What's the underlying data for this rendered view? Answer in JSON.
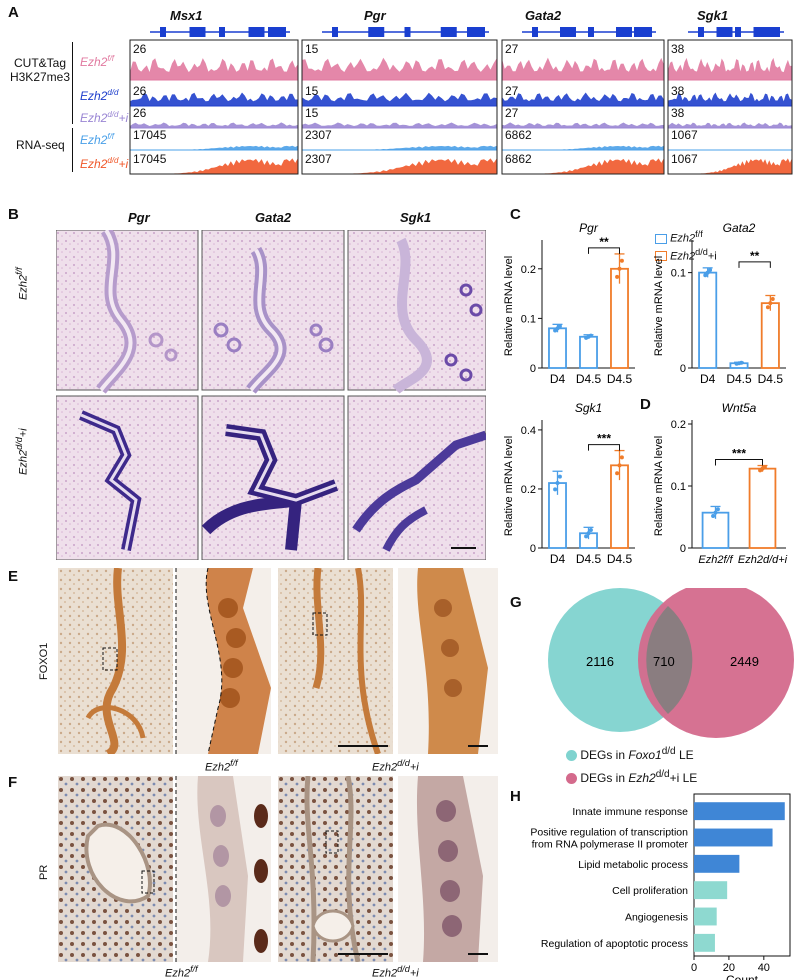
{
  "panels": {
    "A": "A",
    "B": "B",
    "C": "C",
    "D": "D",
    "E": "E",
    "F": "F",
    "G": "G",
    "H": "H"
  },
  "panelA": {
    "genes": [
      "Msx1",
      "Pgr",
      "Gata2",
      "Sgk1"
    ],
    "group_cut": "CUT&Tag",
    "group_cut2": "H3K27me3",
    "group_rna": "RNA-seq",
    "tracks": [
      {
        "label": "Ezh2",
        "sup": "f/f",
        "color": "#e17aa0",
        "scales": [
          "26",
          "15",
          "27",
          "38"
        ]
      },
      {
        "label": "Ezh2",
        "sup": "d/d",
        "color": "#1f3fcc",
        "scales": [
          "26",
          "15",
          "27",
          "38"
        ]
      },
      {
        "label": "Ezh2",
        "sup": "d/d",
        "suffix": "+i",
        "color": "#9a86d4",
        "scales": [
          "26",
          "15",
          "27",
          "38"
        ]
      },
      {
        "label": "Ezh2",
        "sup": "f/f",
        "color": "#4aa0e8",
        "scales": [
          "17045",
          "2307",
          "6862",
          "1067"
        ]
      },
      {
        "label": "Ezh2",
        "sup": "d/d",
        "suffix": "+i",
        "color": "#f0582a",
        "scales": [
          "17045",
          "2307",
          "6862",
          "1067"
        ]
      }
    ]
  },
  "panelB": {
    "cols": [
      "Pgr",
      "Gata2",
      "Sgk1"
    ],
    "rows": [
      {
        "label": "Ezh2",
        "sup": "f/f"
      },
      {
        "label": "Ezh2",
        "sup": "d/d",
        "suffix": "+i"
      }
    ]
  },
  "panelC": {
    "ylabel": "Relative mRNA level",
    "legend": [
      {
        "label": "Ezh2",
        "sup": "f/f",
        "color": "#4a9ee8"
      },
      {
        "label": "Ezh2",
        "sup": "d/d",
        "suffix": "+i",
        "color": "#f07c2a"
      }
    ]
  },
  "chart_data": [
    {
      "type": "bar",
      "title": "Pgr",
      "categories": [
        "D4",
        "D4.5",
        "D4.5"
      ],
      "values": [
        0.08,
        0.063,
        0.2
      ],
      "errors": [
        0.008,
        0.004,
        0.03
      ],
      "colors": [
        "#4a9ee8",
        "#4a9ee8",
        "#f07c2a"
      ],
      "ylim": [
        0,
        0.25
      ],
      "yticks": [
        "0",
        "0.1",
        "0.2"
      ],
      "ytick_values": [
        0,
        0.1,
        0.2
      ],
      "ylabel": "Relative mRNA level",
      "significance": [
        {
          "from": 1,
          "to": 2,
          "label": "**"
        }
      ]
    },
    {
      "type": "bar",
      "title": "Gata2",
      "categories": [
        "D4",
        "D4.5",
        "D4.5"
      ],
      "values": [
        0.1,
        0.005,
        0.068
      ],
      "errors": [
        0.005,
        0.001,
        0.008
      ],
      "colors": [
        "#4a9ee8",
        "#4a9ee8",
        "#f07c2a"
      ],
      "ylim": [
        0,
        0.13
      ],
      "yticks": [
        "0",
        "0.1"
      ],
      "ytick_values": [
        0,
        0.1
      ],
      "ylabel": "Relative mRNA level",
      "significance": [
        {
          "from": 1,
          "to": 2,
          "label": "**"
        }
      ]
    },
    {
      "type": "bar",
      "title": "Sgk1",
      "categories": [
        "D4",
        "D4.5",
        "D4.5"
      ],
      "values": [
        0.22,
        0.05,
        0.28
      ],
      "errors": [
        0.04,
        0.02,
        0.05
      ],
      "colors": [
        "#4a9ee8",
        "#4a9ee8",
        "#f07c2a"
      ],
      "ylim": [
        0,
        0.42
      ],
      "yticks": [
        "0",
        "0.2",
        "0.4"
      ],
      "ytick_values": [
        0,
        0.2,
        0.4
      ],
      "ylabel": "Relative mRNA level",
      "significance": [
        {
          "from": 1,
          "to": 2,
          "label": "***"
        }
      ]
    },
    {
      "type": "bar",
      "title": "Wnt5a",
      "categories": [
        "Ezh2f/f",
        "Ezh2d/d+i"
      ],
      "values": [
        0.057,
        0.128
      ],
      "errors": [
        0.01,
        0.005
      ],
      "colors": [
        "#4a9ee8",
        "#f07c2a"
      ],
      "ylim": [
        0,
        0.2
      ],
      "yticks": [
        "0",
        "0.1",
        "0.2"
      ],
      "ytick_values": [
        0,
        0.1,
        0.2
      ],
      "ylabel": "Relative mRNA level",
      "significance": [
        {
          "from": 0,
          "to": 1,
          "label": "***"
        }
      ]
    },
    {
      "type": "bar",
      "orientation": "horizontal",
      "categories": [
        "Innate immune response",
        "Positive regulation of transcription from RNA polymerase II promoter",
        "Lipid metabolic process",
        "Cell proliferation",
        "Angiogenesis",
        "Regulation of apoptotic process"
      ],
      "values": [
        52,
        45,
        26,
        19,
        13,
        12
      ],
      "colors": [
        "#3f86d6",
        "#3f86d6",
        "#3f86d6",
        "#8ed9d0",
        "#8ed9d0",
        "#8ed9d0"
      ],
      "xlim": [
        0,
        55
      ],
      "xticks": [
        "0",
        "20",
        "40"
      ],
      "xtick_values": [
        0,
        20,
        40
      ],
      "xlabel": "Count"
    }
  ],
  "panelE": {
    "stain": "FOXO1",
    "left": {
      "label": "Ezh2",
      "sup": "f/f"
    },
    "right": {
      "label": "Ezh2",
      "sup": "d/d",
      "suffix": "+i"
    }
  },
  "panelF": {
    "stain": "PR",
    "left": {
      "label": "Ezh2",
      "sup": "f/f"
    },
    "right": {
      "label": "Ezh2",
      "sup": "d/d",
      "suffix": "+i"
    }
  },
  "panelG": {
    "left_only": "2116",
    "overlap": "710",
    "right_only": "2449",
    "legend": [
      {
        "pre": "DEGs in ",
        "gene": "Foxo1",
        "sup": "d/d",
        "post": " LE",
        "color": "#7fd3cf"
      },
      {
        "pre": "DEGs in ",
        "gene": "Ezh2",
        "sup": "d/d",
        "post": "+i LE",
        "color": "#d46a8c"
      }
    ]
  }
}
